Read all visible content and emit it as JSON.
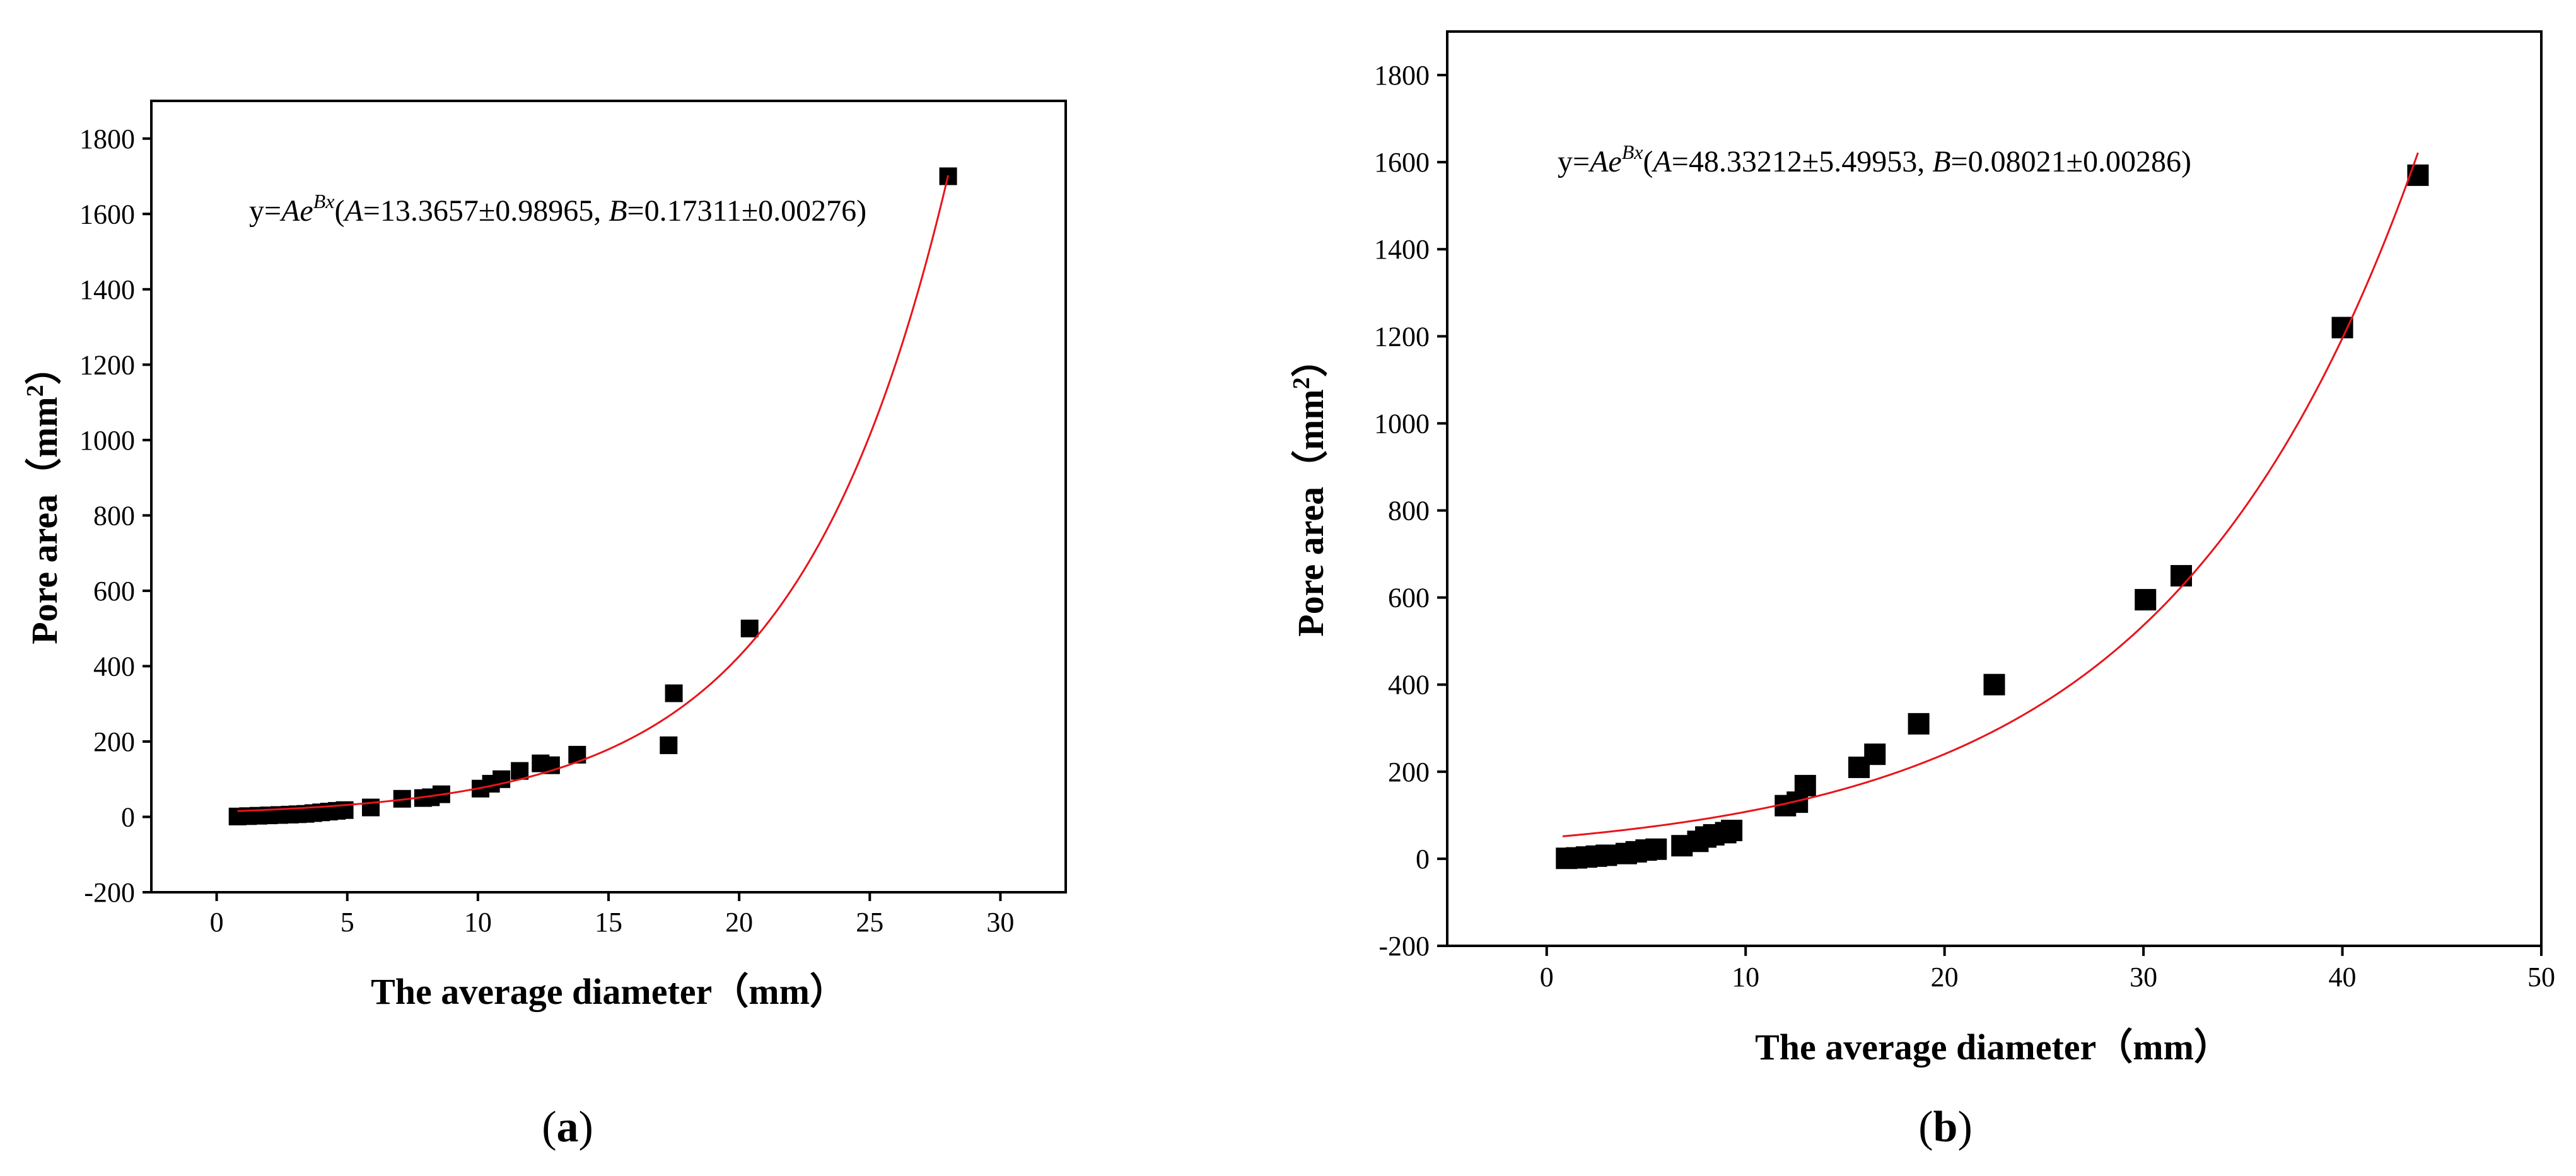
{
  "chart_data": [
    {
      "type": "scatter",
      "panel_label_open": "(",
      "panel_label_letter": "a",
      "panel_label_close": ")",
      "xlabel": "The average diameter（mm）",
      "ylabel_main": "Pore area（mm",
      "ylabel_sup": "2",
      "ylabel_close": "）",
      "xlim": [
        -2.5,
        32.5
      ],
      "ylim": [
        -200,
        1900
      ],
      "xticks": [
        0,
        5,
        10,
        15,
        20,
        25,
        30
      ],
      "yticks": [
        -200,
        0,
        200,
        400,
        600,
        800,
        1000,
        1200,
        1400,
        1600,
        1800
      ],
      "equation": {
        "y": "y=",
        "A": "A",
        "e": "e",
        "exponent": "Bx",
        "open": "(",
        "A_label": "A",
        "A_text": "=13.3657±0.98965, ",
        "B_label": "B",
        "B_text": "=0.17311±0.00276)"
      },
      "fit": {
        "A": 13.3657,
        "B": 0.17311,
        "x_start": 0.8,
        "x_end": 28.0,
        "color": "#e8141b"
      },
      "marker_color": "#000000",
      "points": [
        [
          0.8,
          1
        ],
        [
          1.2,
          2
        ],
        [
          1.6,
          3
        ],
        [
          2.0,
          4
        ],
        [
          2.4,
          5
        ],
        [
          2.8,
          6
        ],
        [
          3.1,
          7
        ],
        [
          3.4,
          8
        ],
        [
          3.7,
          10
        ],
        [
          4.0,
          12
        ],
        [
          4.3,
          14
        ],
        [
          4.6,
          16
        ],
        [
          4.9,
          18
        ],
        [
          5.9,
          25
        ],
        [
          7.1,
          48
        ],
        [
          7.9,
          50
        ],
        [
          8.2,
          52
        ],
        [
          8.6,
          60
        ],
        [
          10.1,
          75
        ],
        [
          10.5,
          88
        ],
        [
          10.9,
          100
        ],
        [
          11.6,
          122
        ],
        [
          12.4,
          142
        ],
        [
          12.8,
          137
        ],
        [
          13.8,
          165
        ],
        [
          17.3,
          190
        ],
        [
          17.5,
          328
        ],
        [
          20.4,
          500
        ],
        [
          28.0,
          1700
        ]
      ]
    },
    {
      "type": "scatter",
      "panel_label_open": "(",
      "panel_label_letter": "b",
      "panel_label_close": ")",
      "xlabel": "The average diameter（mm）",
      "ylabel_main": "Pore area（mm",
      "ylabel_sup": "2",
      "ylabel_close": "）",
      "xlim": [
        -5,
        50
      ],
      "ylim": [
        -200,
        1900
      ],
      "xticks": [
        0,
        10,
        20,
        30,
        40,
        50
      ],
      "yticks": [
        -200,
        0,
        200,
        400,
        600,
        800,
        1000,
        1200,
        1400,
        1600,
        1800
      ],
      "equation": {
        "y": "y=",
        "A": "A",
        "e": "e",
        "exponent": "Bx",
        "open": "(",
        "A_label": "A",
        "A_text": "=48.33212±5.49953, ",
        "B_label": "B",
        "B_text": "=0.08021±0.00286)"
      },
      "fit": {
        "A": 48.33212,
        "B": 0.08021,
        "x_start": 0.8,
        "x_end": 43.8,
        "color": "#e8141b"
      },
      "marker_color": "#000000",
      "points": [
        [
          1.0,
          1
        ],
        [
          1.5,
          2
        ],
        [
          2.0,
          4
        ],
        [
          2.5,
          6
        ],
        [
          3.0,
          8
        ],
        [
          4.0,
          12
        ],
        [
          4.5,
          16
        ],
        [
          5.0,
          20
        ],
        [
          5.5,
          22
        ],
        [
          6.8,
          30
        ],
        [
          7.6,
          40
        ],
        [
          8.0,
          50
        ],
        [
          8.4,
          55
        ],
        [
          9.0,
          60
        ],
        [
          9.3,
          65
        ],
        [
          12.0,
          122
        ],
        [
          12.6,
          130
        ],
        [
          13.0,
          168
        ],
        [
          15.7,
          210
        ],
        [
          16.5,
          240
        ],
        [
          18.7,
          310
        ],
        [
          22.5,
          400
        ],
        [
          30.1,
          595
        ],
        [
          31.9,
          650
        ],
        [
          40.0,
          1220
        ],
        [
          43.8,
          1570
        ]
      ]
    }
  ]
}
